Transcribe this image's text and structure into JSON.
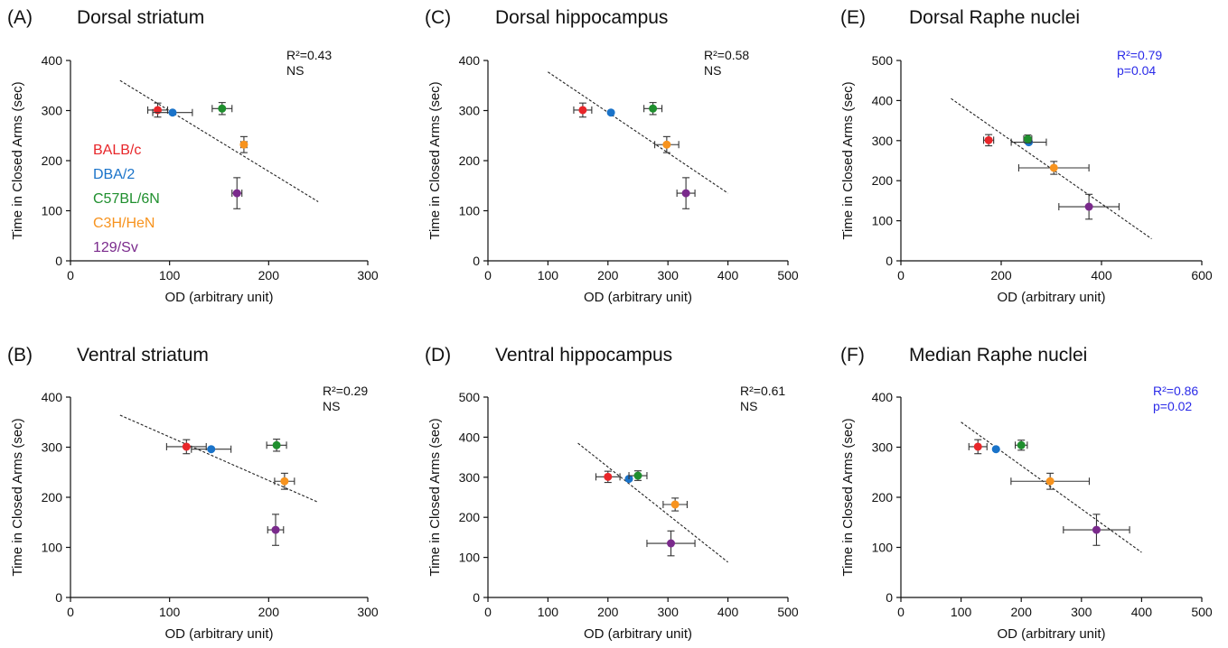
{
  "legend": [
    {
      "label": "BALB/c",
      "color": "#e8262a"
    },
    {
      "label": "DBA/2",
      "color": "#1a73c9"
    },
    {
      "label": "C57BL/6N",
      "color": "#1f8f2e"
    },
    {
      "label": "C3H/HeN",
      "color": "#f7931e"
    },
    {
      "label": "129/Sv",
      "color": "#7a2a8c"
    }
  ],
  "chart_data": [
    {
      "type": "scatter",
      "panel": "(A)",
      "title": "Dorsal striatum",
      "xlabel": "OD (arbitrary unit)",
      "ylabel": "Time in Closed Arms (sec)",
      "xlim": [
        0,
        300
      ],
      "ylim": [
        0,
        400
      ],
      "xticks": [
        "0",
        "100",
        "200",
        "300"
      ],
      "yticks": [
        "0",
        "100",
        "200",
        "300",
        "400"
      ],
      "stats": [
        "R²=0.43",
        "NS"
      ],
      "stats_color": "#111111",
      "points": [
        {
          "strain": "BALB/c",
          "x": 88,
          "y": 301,
          "xerr": 10,
          "yerr": 14
        },
        {
          "strain": "DBA/2",
          "x": 103,
          "y": 296,
          "xerr": 20,
          "yerr": 0
        },
        {
          "strain": "C57BL/6N",
          "x": 153,
          "y": 304,
          "xerr": 10,
          "yerr": 12
        },
        {
          "strain": "C3H/HeN",
          "x": 175,
          "y": 232,
          "xerr": 3,
          "yerr": 16
        },
        {
          "strain": "129/Sv",
          "x": 168,
          "y": 135,
          "xerr": 5,
          "yerr": 31
        }
      ],
      "fit": {
        "x": [
          50,
          250
        ],
        "y": [
          360,
          118
        ]
      }
    },
    {
      "type": "scatter",
      "panel": "(B)",
      "title": "Ventral striatum",
      "xlabel": "OD (arbitrary unit)",
      "ylabel": "Time in Closed Arms (sec)",
      "xlim": [
        0,
        300
      ],
      "ylim": [
        0,
        400
      ],
      "xticks": [
        "0",
        "100",
        "200",
        "300"
      ],
      "yticks": [
        "0",
        "100",
        "200",
        "300",
        "400"
      ],
      "stats": [
        "R²=0.29",
        "NS"
      ],
      "stats_color": "#111111",
      "points": [
        {
          "strain": "BALB/c",
          "x": 117,
          "y": 301,
          "xerr": 20,
          "yerr": 14
        },
        {
          "strain": "DBA/2",
          "x": 142,
          "y": 296,
          "xerr": 20,
          "yerr": 0
        },
        {
          "strain": "C57BL/6N",
          "x": 208,
          "y": 304,
          "xerr": 10,
          "yerr": 12
        },
        {
          "strain": "C3H/HeN",
          "x": 216,
          "y": 232,
          "xerr": 10,
          "yerr": 16
        },
        {
          "strain": "129/Sv",
          "x": 207,
          "y": 135,
          "xerr": 8,
          "yerr": 31
        }
      ],
      "fit": {
        "x": [
          50,
          250
        ],
        "y": [
          364,
          190
        ]
      }
    },
    {
      "type": "scatter",
      "panel": "(C)",
      "title": "Dorsal hippocampus",
      "xlabel": "OD (arbitrary unit)",
      "ylabel": "Time in Closed Arms (sec)",
      "xlim": [
        0,
        500
      ],
      "ylim": [
        0,
        400
      ],
      "xticks": [
        "0",
        "100",
        "200",
        "300",
        "400",
        "500"
      ],
      "yticks": [
        "0",
        "100",
        "200",
        "300",
        "400"
      ],
      "stats": [
        "R²=0.58",
        "NS"
      ],
      "stats_color": "#111111",
      "points": [
        {
          "strain": "BALB/c",
          "x": 158,
          "y": 301,
          "xerr": 15,
          "yerr": 14
        },
        {
          "strain": "DBA/2",
          "x": 205,
          "y": 296,
          "xerr": 0,
          "yerr": 0
        },
        {
          "strain": "C57BL/6N",
          "x": 275,
          "y": 304,
          "xerr": 15,
          "yerr": 12
        },
        {
          "strain": "C3H/HeN",
          "x": 298,
          "y": 232,
          "xerr": 20,
          "yerr": 16
        },
        {
          "strain": "129/Sv",
          "x": 330,
          "y": 135,
          "xerr": 15,
          "yerr": 31
        }
      ],
      "fit": {
        "x": [
          100,
          400
        ],
        "y": [
          377,
          135
        ]
      }
    },
    {
      "type": "scatter",
      "panel": "(D)",
      "title": "Ventral hippocampus",
      "xlabel": "OD (arbitrary unit)",
      "ylabel": "Time in Closed Arms (sec)",
      "xlim": [
        0,
        500
      ],
      "ylim": [
        0,
        500
      ],
      "xticks": [
        "0",
        "100",
        "200",
        "300",
        "400",
        "500"
      ],
      "yticks": [
        "0",
        "100",
        "200",
        "300",
        "400",
        "500"
      ],
      "stats": [
        "R²=0.61",
        "NS"
      ],
      "stats_color": "#111111",
      "points": [
        {
          "strain": "BALB/c",
          "x": 200,
          "y": 301,
          "xerr": 20,
          "yerr": 14
        },
        {
          "strain": "DBA/2",
          "x": 235,
          "y": 296,
          "xerr": 0,
          "yerr": 0
        },
        {
          "strain": "C57BL/6N",
          "x": 250,
          "y": 304,
          "xerr": 15,
          "yerr": 12
        },
        {
          "strain": "C3H/HeN",
          "x": 312,
          "y": 232,
          "xerr": 20,
          "yerr": 16
        },
        {
          "strain": "129/Sv",
          "x": 305,
          "y": 135,
          "xerr": 40,
          "yerr": 31
        }
      ],
      "fit": {
        "x": [
          150,
          400
        ],
        "y": [
          385,
          88
        ]
      }
    },
    {
      "type": "scatter",
      "panel": "(E)",
      "title": "Dorsal Raphe nuclei",
      "xlabel": "OD (arbitrary unit)",
      "ylabel": "Time in Closed Arms (sec)",
      "xlim": [
        0,
        600
      ],
      "ylim": [
        0,
        500
      ],
      "xticks": [
        "0",
        "200",
        "400",
        "600"
      ],
      "yticks": [
        "0",
        "100",
        "200",
        "300",
        "400",
        "500"
      ],
      "stats": [
        "R²=0.79",
        "p=0.04"
      ],
      "stats_color": "#2a2ae8",
      "points": [
        {
          "strain": "BALB/c",
          "x": 175,
          "y": 301,
          "xerr": 10,
          "yerr": 14
        },
        {
          "strain": "DBA/2",
          "x": 255,
          "y": 296,
          "xerr": 35,
          "yerr": 0
        },
        {
          "strain": "C57BL/6N",
          "x": 253,
          "y": 304,
          "xerr": 8,
          "yerr": 10
        },
        {
          "strain": "C3H/HeN",
          "x": 305,
          "y": 232,
          "xerr": 70,
          "yerr": 16
        },
        {
          "strain": "129/Sv",
          "x": 375,
          "y": 135,
          "xerr": 60,
          "yerr": 31
        }
      ],
      "fit": {
        "x": [
          100,
          500
        ],
        "y": [
          405,
          55
        ]
      }
    },
    {
      "type": "scatter",
      "panel": "(F)",
      "title": "Median Raphe nuclei",
      "xlabel": "OD (arbitrary unit)",
      "ylabel": "Time in Closed Arms (sec)",
      "xlim": [
        0,
        500
      ],
      "ylim": [
        0,
        400
      ],
      "xticks": [
        "0",
        "100",
        "200",
        "300",
        "400",
        "500"
      ],
      "yticks": [
        "0",
        "100",
        "200",
        "300",
        "400"
      ],
      "stats": [
        "R²=0.86",
        "p=0.02"
      ],
      "stats_color": "#2a2ae8",
      "points": [
        {
          "strain": "BALB/c",
          "x": 128,
          "y": 301,
          "xerr": 15,
          "yerr": 14
        },
        {
          "strain": "DBA/2",
          "x": 158,
          "y": 296,
          "xerr": 0,
          "yerr": 0
        },
        {
          "strain": "C57BL/6N",
          "x": 200,
          "y": 304,
          "xerr": 10,
          "yerr": 10
        },
        {
          "strain": "C3H/HeN",
          "x": 248,
          "y": 232,
          "xerr": 65,
          "yerr": 16
        },
        {
          "strain": "129/Sv",
          "x": 325,
          "y": 135,
          "xerr": 55,
          "yerr": 31
        }
      ],
      "fit": {
        "x": [
          100,
          400
        ],
        "y": [
          350,
          90
        ]
      }
    }
  ]
}
